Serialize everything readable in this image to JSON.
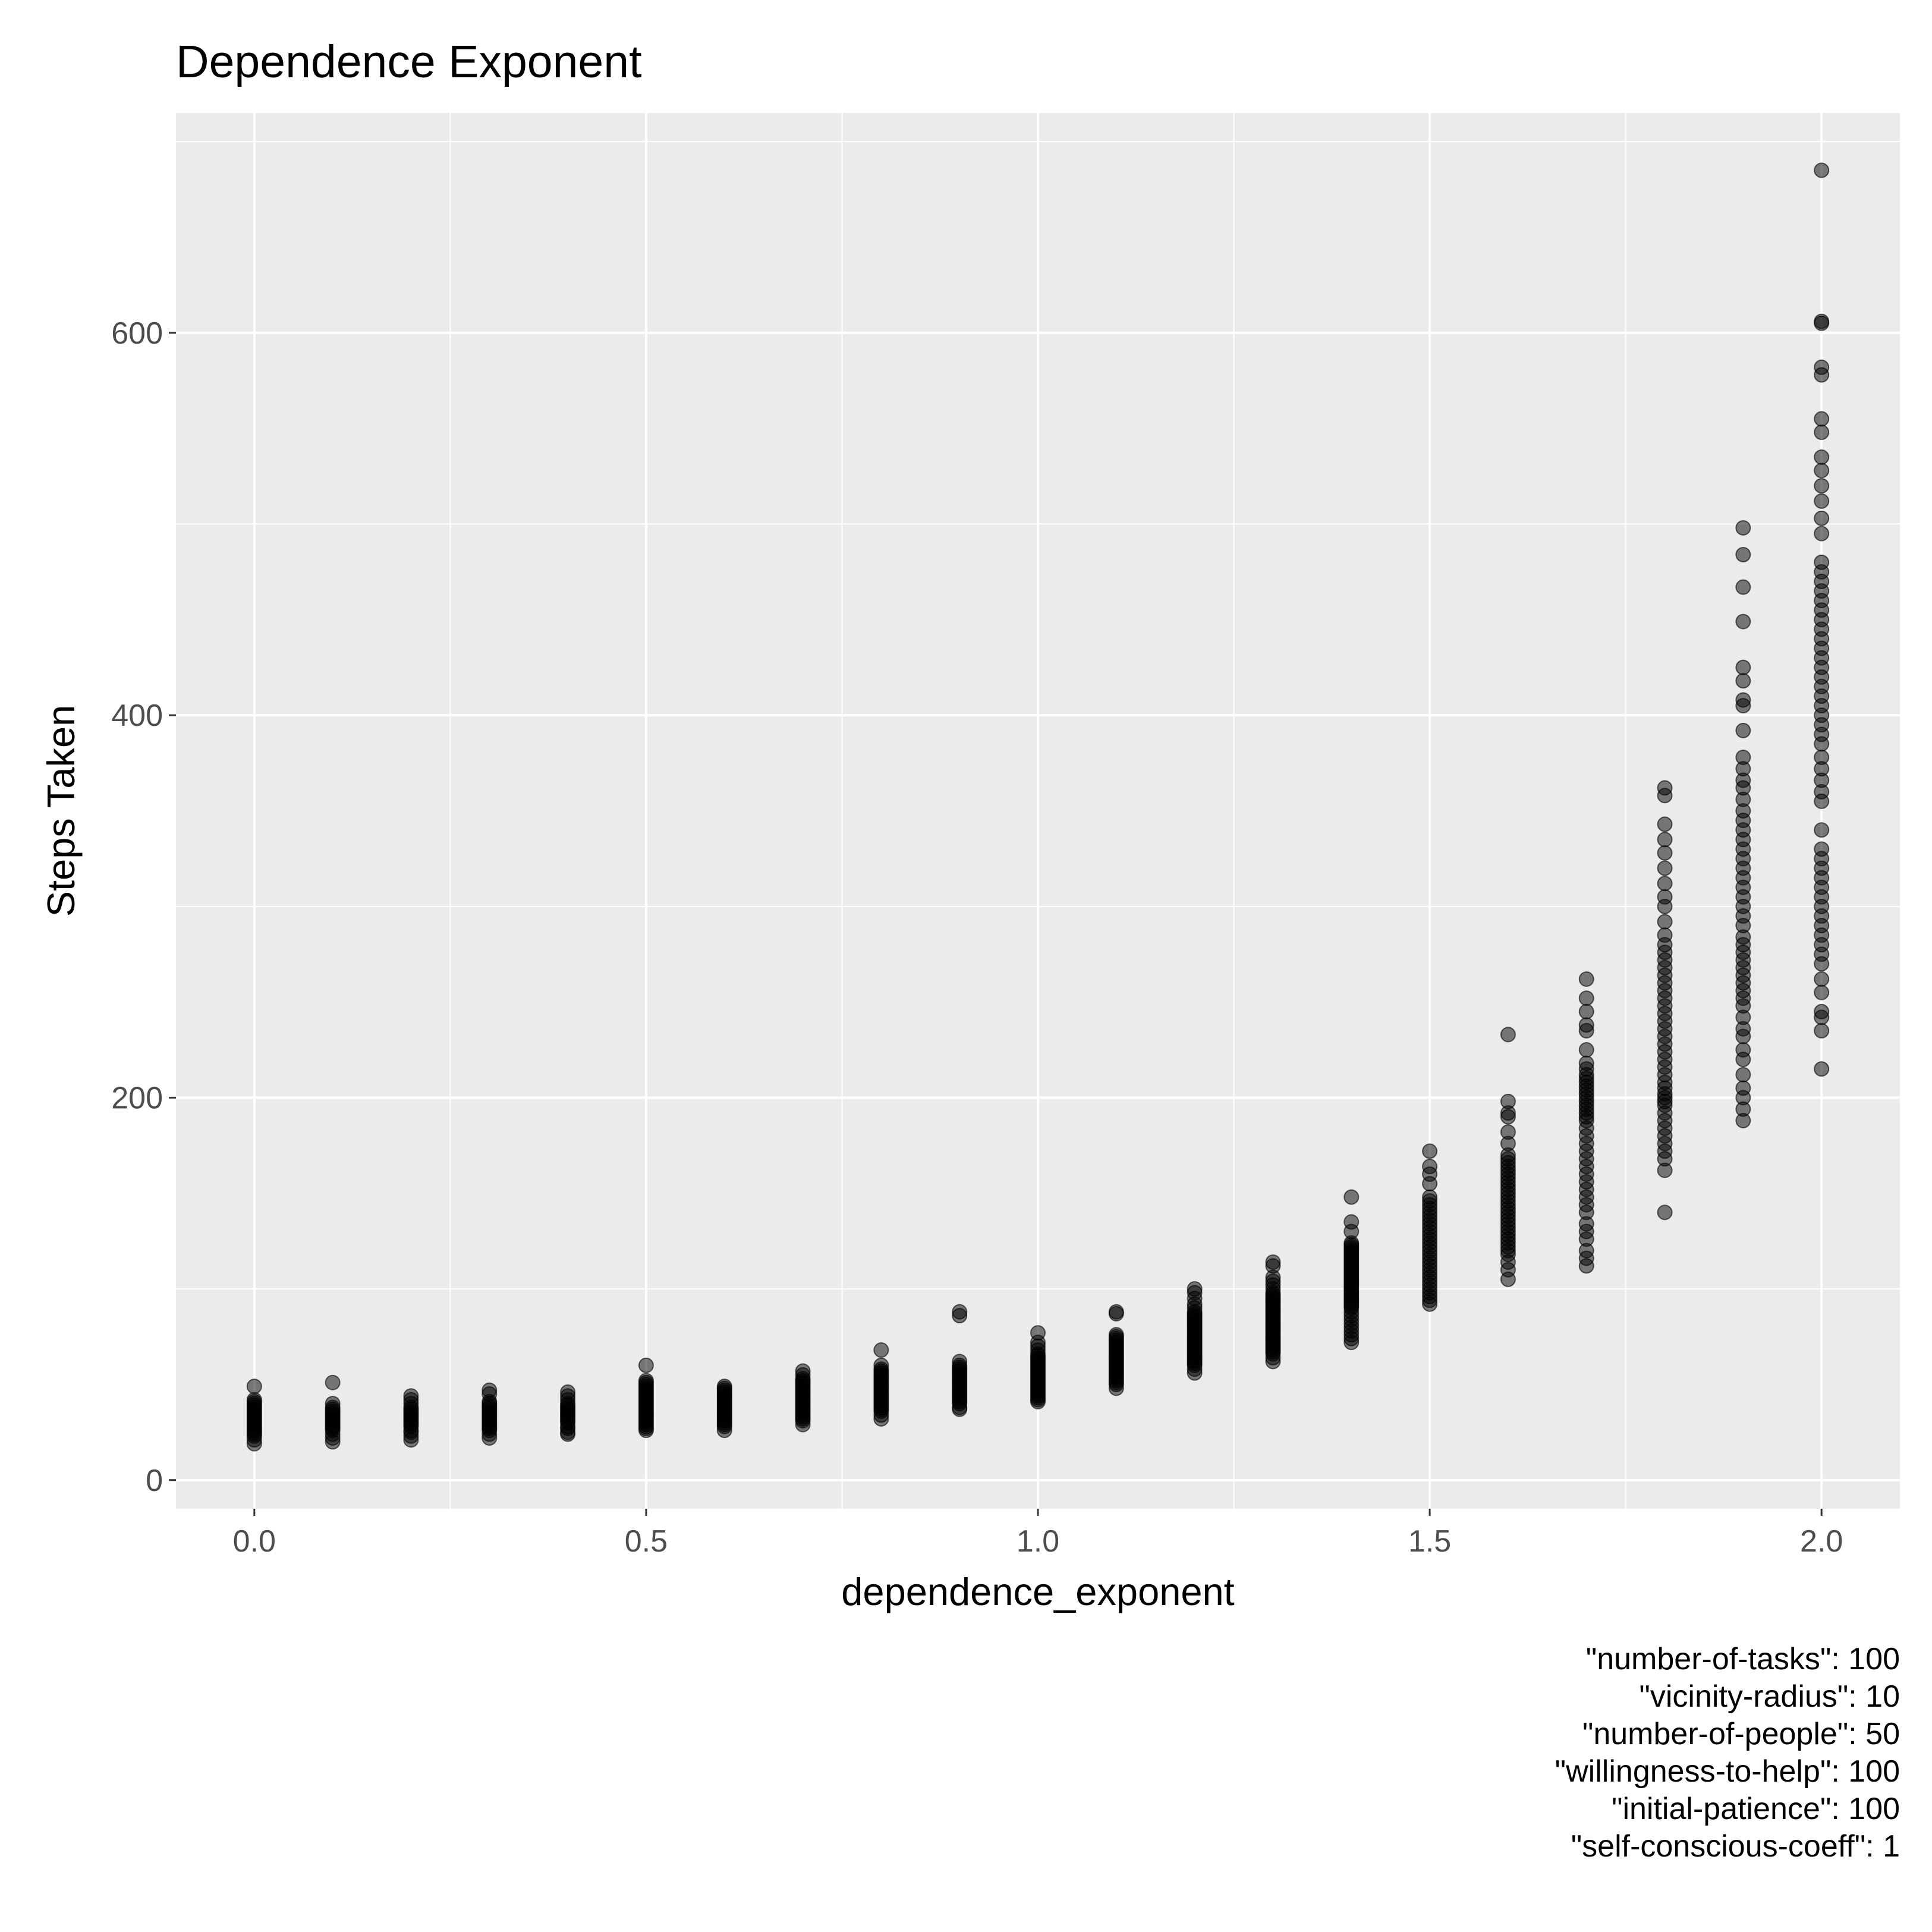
{
  "chart_data": {
    "type": "scatter",
    "title": "Dependence Exponent",
    "xlabel": "dependence_exponent",
    "ylabel": "Steps Taken",
    "xlim": [
      -0.1,
      2.1
    ],
    "ylim": [
      -15,
      715
    ],
    "xticks": [
      0.0,
      0.5,
      1.0,
      1.5,
      2.0
    ],
    "xtick_labels": [
      "0.0",
      "0.5",
      "1.0",
      "1.5",
      "2.0"
    ],
    "yticks": [
      0,
      200,
      400,
      600
    ],
    "ytick_labels": [
      "0",
      "200",
      "400",
      "600"
    ],
    "grid": true,
    "background": "#ebebeb",
    "grid_color": "#ffffff",
    "point_color": "#000000",
    "point_alpha": 0.5,
    "caption_lines": [
      "\"number-of-tasks\": 100",
      "\"vicinity-radius\": 10",
      "\"number-of-people\": 50",
      "\"willingness-to-help\": 100",
      "\"initial-patience\": 100",
      "\"self-conscious-coeff\": 1"
    ],
    "points": [
      {
        "x": 0.0,
        "y": [
          19,
          21,
          23,
          24,
          25,
          26,
          27,
          28,
          29,
          30,
          31,
          32,
          33,
          34,
          35,
          36,
          37,
          38,
          39,
          40,
          41,
          42,
          49
        ]
      },
      {
        "x": 0.1,
        "y": [
          20,
          22,
          24,
          26,
          27,
          28,
          29,
          30,
          31,
          32,
          33,
          34,
          35,
          36,
          37,
          38,
          40,
          51
        ]
      },
      {
        "x": 0.2,
        "y": [
          21,
          23,
          25,
          26,
          28,
          29,
          30,
          31,
          32,
          33,
          34,
          35,
          36,
          37,
          38,
          40,
          42,
          44
        ]
      },
      {
        "x": 0.3,
        "y": [
          22,
          24,
          26,
          27,
          28,
          29,
          30,
          31,
          32,
          33,
          34,
          35,
          36,
          37,
          38,
          39,
          40,
          41,
          45,
          47
        ]
      },
      {
        "x": 0.4,
        "y": [
          24,
          25,
          27,
          28,
          30,
          31,
          32,
          33,
          34,
          35,
          36,
          37,
          38,
          39,
          40,
          42,
          44,
          46
        ]
      },
      {
        "x": 0.5,
        "y": [
          26,
          27,
          28,
          29,
          30,
          31,
          32,
          33,
          34,
          35,
          36,
          37,
          38,
          39,
          40,
          41,
          42,
          43,
          44,
          45,
          46,
          47,
          48,
          49,
          50,
          51,
          52,
          60
        ]
      },
      {
        "x": 0.6,
        "y": [
          26,
          28,
          29,
          30,
          31,
          32,
          33,
          34,
          35,
          36,
          37,
          38,
          39,
          40,
          41,
          42,
          43,
          44,
          45,
          46,
          47,
          48,
          49
        ]
      },
      {
        "x": 0.7,
        "y": [
          29,
          31,
          32,
          33,
          34,
          35,
          36,
          37,
          38,
          39,
          40,
          41,
          42,
          43,
          44,
          45,
          46,
          47,
          48,
          49,
          50,
          51,
          52,
          53,
          55,
          57
        ]
      },
      {
        "x": 0.8,
        "y": [
          32,
          34,
          36,
          37,
          38,
          39,
          40,
          41,
          42,
          43,
          44,
          45,
          46,
          47,
          48,
          49,
          50,
          51,
          52,
          53,
          54,
          55,
          56,
          57,
          58,
          60,
          68
        ]
      },
      {
        "x": 0.9,
        "y": [
          37,
          38,
          40,
          41,
          42,
          43,
          44,
          45,
          46,
          47,
          48,
          49,
          50,
          51,
          52,
          53,
          54,
          55,
          56,
          57,
          58,
          59,
          60,
          62,
          86,
          88
        ]
      },
      {
        "x": 1.0,
        "y": [
          41,
          42,
          43,
          44,
          45,
          46,
          47,
          48,
          49,
          50,
          51,
          52,
          53,
          54,
          55,
          56,
          57,
          58,
          59,
          60,
          61,
          62,
          63,
          64,
          65,
          66,
          68,
          70,
          72,
          77
        ]
      },
      {
        "x": 1.1,
        "y": [
          48,
          50,
          51,
          52,
          53,
          54,
          55,
          56,
          57,
          58,
          59,
          60,
          61,
          62,
          63,
          64,
          65,
          66,
          67,
          68,
          69,
          70,
          71,
          72,
          73,
          74,
          75,
          76,
          87,
          88
        ]
      },
      {
        "x": 1.2,
        "y": [
          56,
          58,
          60,
          61,
          62,
          63,
          64,
          65,
          66,
          67,
          68,
          69,
          70,
          71,
          72,
          73,
          74,
          75,
          76,
          77,
          78,
          79,
          80,
          81,
          82,
          83,
          84,
          85,
          86,
          87,
          88,
          90,
          92,
          95,
          98,
          100
        ]
      },
      {
        "x": 1.3,
        "y": [
          62,
          64,
          66,
          67,
          68,
          69,
          70,
          71,
          72,
          73,
          74,
          75,
          76,
          77,
          78,
          79,
          80,
          81,
          82,
          83,
          84,
          85,
          86,
          87,
          88,
          89,
          90,
          91,
          92,
          93,
          94,
          95,
          96,
          97,
          98,
          100,
          102,
          104,
          106,
          112,
          114
        ]
      },
      {
        "x": 1.4,
        "y": [
          72,
          74,
          76,
          78,
          80,
          82,
          84,
          86,
          88,
          90,
          91,
          92,
          93,
          94,
          95,
          96,
          97,
          98,
          99,
          100,
          101,
          102,
          103,
          104,
          105,
          106,
          107,
          108,
          109,
          110,
          111,
          112,
          113,
          114,
          115,
          116,
          117,
          118,
          119,
          120,
          121,
          122,
          123,
          124,
          130,
          135,
          148
        ]
      },
      {
        "x": 1.5,
        "y": [
          92,
          94,
          96,
          98,
          100,
          102,
          104,
          106,
          108,
          110,
          112,
          114,
          116,
          118,
          120,
          122,
          124,
          126,
          128,
          130,
          132,
          134,
          136,
          138,
          140,
          142,
          144,
          146,
          148,
          155,
          160,
          164,
          172
        ]
      },
      {
        "x": 1.6,
        "y": [
          105,
          110,
          114,
          118,
          120,
          122,
          124,
          126,
          128,
          130,
          132,
          134,
          136,
          138,
          140,
          142,
          144,
          146,
          148,
          150,
          152,
          154,
          156,
          158,
          160,
          162,
          164,
          166,
          168,
          170,
          176,
          182,
          190,
          192,
          198,
          233
        ]
      },
      {
        "x": 1.7,
        "y": [
          112,
          116,
          120,
          126,
          130,
          134,
          140,
          144,
          148,
          152,
          156,
          160,
          164,
          168,
          172,
          176,
          180,
          184,
          188,
          190,
          192,
          194,
          196,
          198,
          200,
          202,
          204,
          206,
          208,
          210,
          212,
          215,
          218,
          225,
          235,
          238,
          245,
          252,
          262
        ]
      },
      {
        "x": 1.8,
        "y": [
          140,
          162,
          168,
          172,
          176,
          180,
          184,
          188,
          192,
          196,
          198,
          200,
          202,
          205,
          208,
          212,
          216,
          220,
          224,
          228,
          232,
          236,
          240,
          244,
          248,
          252,
          256,
          260,
          264,
          268,
          272,
          276,
          280,
          285,
          292,
          300,
          305,
          312,
          320,
          328,
          335,
          343,
          358,
          362
        ]
      },
      {
        "x": 1.9,
        "y": [
          188,
          194,
          200,
          205,
          212,
          220,
          225,
          232,
          236,
          242,
          248,
          252,
          256,
          260,
          264,
          268,
          272,
          276,
          280,
          284,
          290,
          295,
          300,
          305,
          310,
          315,
          320,
          325,
          330,
          335,
          340,
          345,
          350,
          356,
          362,
          366,
          372,
          378,
          392,
          405,
          408,
          418,
          425,
          449,
          467,
          484,
          498
        ]
      },
      {
        "x": 2.0,
        "y": [
          215,
          235,
          242,
          245,
          255,
          262,
          270,
          275,
          280,
          285,
          290,
          295,
          300,
          305,
          310,
          315,
          320,
          325,
          330,
          340,
          355,
          360,
          366,
          372,
          378,
          385,
          390,
          395,
          400,
          405,
          410,
          415,
          420,
          425,
          430,
          435,
          440,
          445,
          450,
          455,
          460,
          465,
          470,
          475,
          480,
          495,
          503,
          512,
          520,
          528,
          535,
          548,
          555,
          578,
          582,
          605,
          606,
          685
        ]
      }
    ]
  }
}
